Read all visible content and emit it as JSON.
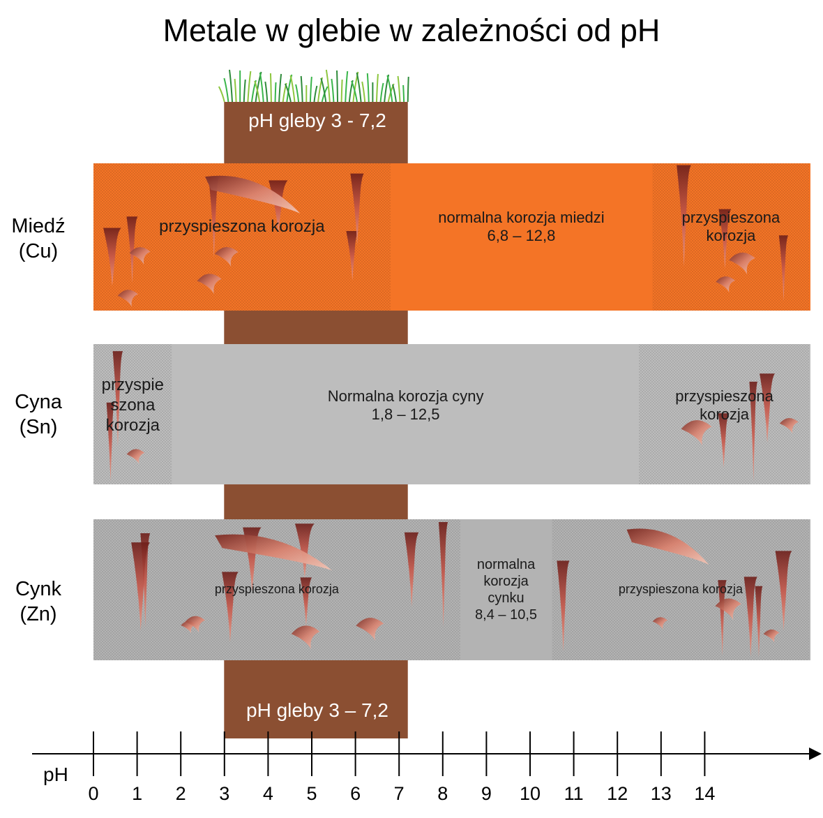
{
  "title": "Metale w glebie w zależności od pH",
  "soil": {
    "label_top": "pH gleby 3 - 7,2",
    "label_bottom": "pH gleby 3 – 7,2",
    "range": [
      3,
      7.2
    ],
    "color": "#8B4F32"
  },
  "axis": {
    "label": "pH",
    "ticks": [
      "0",
      "1",
      "2",
      "3",
      "4",
      "5",
      "6",
      "7",
      "8",
      "9",
      "10",
      "11",
      "12",
      "13",
      "14"
    ]
  },
  "metals": [
    {
      "name_line1": "Miedź",
      "name_line2": "(Cu)",
      "color": "#F47426",
      "zones": [
        {
          "kind": "accelerated",
          "from": 0,
          "to": 6.8,
          "lines": [
            "przyspieszona korozja"
          ]
        },
        {
          "kind": "normal",
          "from": 6.8,
          "to": 12.8,
          "lines": [
            "normalna korozja miedzi",
            "6,8 – 12,8"
          ]
        },
        {
          "kind": "accelerated",
          "from": 12.8,
          "to": 16.4,
          "lines": [
            "przyspieszona",
            "korozja"
          ]
        }
      ]
    },
    {
      "name_line1": "Cyna",
      "name_line2": "(Sn)",
      "color": "#BDBDBD",
      "zones": [
        {
          "kind": "accelerated",
          "from": 0,
          "to": 1.8,
          "lines": [
            "przyspie",
            "szona",
            "korozja"
          ]
        },
        {
          "kind": "normal",
          "from": 1.8,
          "to": 12.5,
          "lines": [
            "Normalna korozja cyny",
            "1,8 – 12,5"
          ]
        },
        {
          "kind": "accelerated",
          "from": 12.5,
          "to": 16.4,
          "lines": [
            "przyspieszona",
            "korozja"
          ]
        }
      ]
    },
    {
      "name_line1": "Cynk",
      "name_line2": "(Zn)",
      "color": "#B3B3B3",
      "zones": [
        {
          "kind": "accelerated",
          "from": 0,
          "to": 8.4,
          "lines": [
            "przyspieszona korozja"
          ]
        },
        {
          "kind": "normal",
          "from": 8.4,
          "to": 10.5,
          "lines": [
            "normalna",
            "korozja",
            "cynku",
            "8,4 – 10,5"
          ]
        },
        {
          "kind": "accelerated",
          "from": 10.5,
          "to": 16.4,
          "lines": [
            "przyspieszona korozja"
          ]
        }
      ]
    }
  ]
}
